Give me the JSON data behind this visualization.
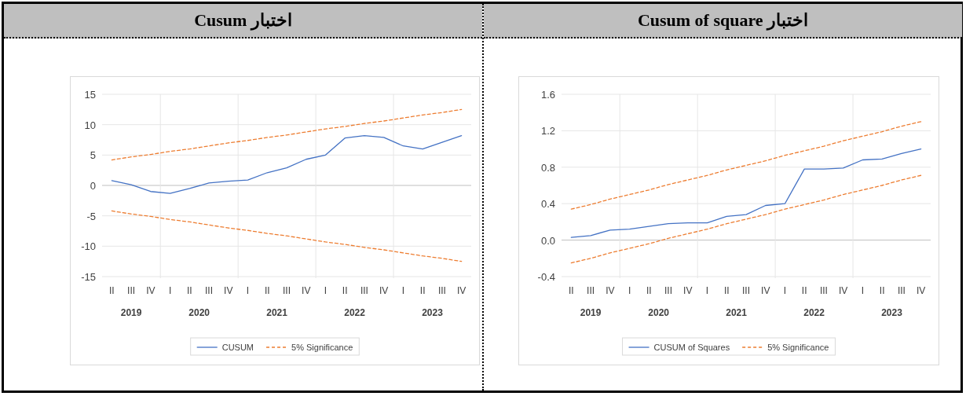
{
  "chart_data": [
    {
      "type": "line",
      "title": "اختبار Cusum",
      "categories": [
        "II",
        "III",
        "IV",
        "I",
        "II",
        "III",
        "IV",
        "I",
        "II",
        "III",
        "IV",
        "I",
        "II",
        "III",
        "IV",
        "I",
        "II",
        "III",
        "IV"
      ],
      "annotations": [
        "2019",
        "2020",
        "2021",
        "2022",
        "2023"
      ],
      "ylim": [
        -15,
        15
      ],
      "yticks": [
        -15,
        -10,
        -5,
        0,
        5,
        10,
        15
      ],
      "grid": "y",
      "legend": "bottom",
      "series": [
        {
          "name": "CUSUM",
          "color": "#4472c4",
          "line_style": "solid",
          "values": [
            0.8,
            0.1,
            -1.0,
            -1.3,
            -0.5,
            0.4,
            0.7,
            0.9,
            2.1,
            2.9,
            4.3,
            5.0,
            7.8,
            8.2,
            7.9,
            6.5,
            6.0,
            7.1,
            8.2
          ]
        },
        {
          "name": "5% Significance",
          "color": "#ed7d31",
          "line_style": "dashed",
          "values": [
            4.2,
            4.7,
            5.1,
            5.6,
            6.0,
            6.5,
            7.0,
            7.4,
            7.9,
            8.3,
            8.8,
            9.3,
            9.7,
            10.2,
            10.6,
            11.1,
            11.6,
            12.0,
            12.5
          ]
        },
        {
          "color": "#ed7d31",
          "line_style": "dashed",
          "values": [
            -4.2,
            -4.7,
            -5.1,
            -5.6,
            -6.0,
            -6.5,
            -7.0,
            -7.4,
            -7.9,
            -8.3,
            -8.8,
            -9.3,
            -9.7,
            -10.2,
            -10.6,
            -11.1,
            -11.6,
            -12.0,
            -12.5
          ]
        }
      ]
    },
    {
      "type": "line",
      "title": "اختبار Cusum of square",
      "categories": [
        "II",
        "III",
        "IV",
        "I",
        "II",
        "III",
        "IV",
        "I",
        "II",
        "III",
        "IV",
        "I",
        "II",
        "III",
        "IV",
        "I",
        "II",
        "III",
        "IV"
      ],
      "annotations": [
        "2019",
        "2020",
        "2021",
        "2022",
        "2023"
      ],
      "ylim": [
        -0.4,
        1.6
      ],
      "yticks": [
        {
          "value": -0.4,
          "label": "-0.4"
        },
        {
          "value": 0,
          "label": "0.0"
        },
        {
          "value": 0.4,
          "label": "0.4"
        },
        {
          "value": 0.8,
          "label": "0.8"
        },
        {
          "value": 1.2,
          "label": "1.2"
        },
        {
          "value": 1.6,
          "label": "1.6"
        }
      ],
      "grid": "y",
      "legend": "bottom",
      "series": [
        {
          "name": "CUSUM of Squares",
          "color": "#4472c4",
          "line_style": "solid",
          "values": [
            0.03,
            0.05,
            0.11,
            0.12,
            0.15,
            0.18,
            0.19,
            0.19,
            0.26,
            0.28,
            0.38,
            0.4,
            0.78,
            0.78,
            0.79,
            0.88,
            0.89,
            0.95,
            1.0
          ]
        },
        {
          "name": "5% Significance",
          "color": "#ed7d31",
          "line_style": "dashed",
          "values": [
            0.34,
            0.39,
            0.45,
            0.5,
            0.55,
            0.61,
            0.66,
            0.71,
            0.77,
            0.82,
            0.87,
            0.93,
            0.98,
            1.03,
            1.09,
            1.14,
            1.19,
            1.25,
            1.3
          ]
        },
        {
          "color": "#ed7d31",
          "line_style": "dashed",
          "values": [
            -0.25,
            -0.2,
            -0.14,
            -0.09,
            -0.04,
            0.02,
            0.07,
            0.12,
            0.18,
            0.23,
            0.28,
            0.34,
            0.39,
            0.44,
            0.5,
            0.55,
            0.6,
            0.66,
            0.71
          ]
        }
      ]
    }
  ]
}
